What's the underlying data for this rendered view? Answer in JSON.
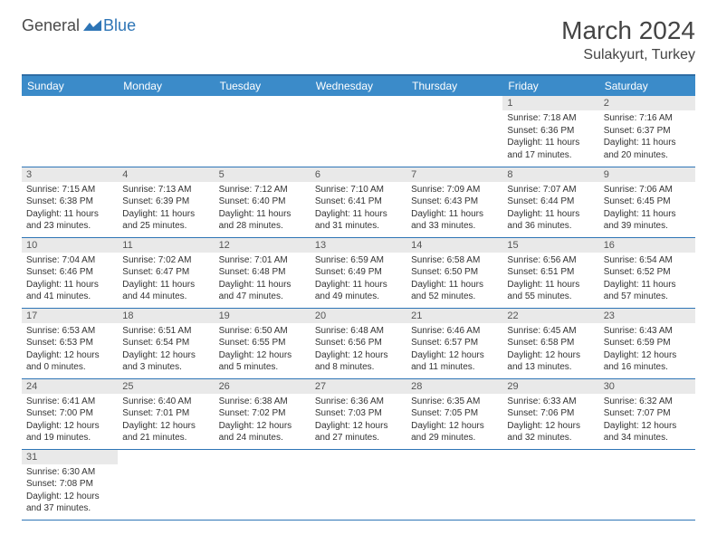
{
  "logo": {
    "general": "General",
    "blue": "Blue"
  },
  "title": "March 2024",
  "location": "Sulakyurt, Turkey",
  "colors": {
    "header_bg": "#3b8bc9",
    "header_border": "#2e6da4",
    "row_border": "#2e75b6",
    "daynum_bg": "#e9e9e9",
    "text": "#333333",
    "logo_blue": "#2e75b6",
    "background": "#ffffff"
  },
  "weekdays": [
    "Sunday",
    "Monday",
    "Tuesday",
    "Wednesday",
    "Thursday",
    "Friday",
    "Saturday"
  ],
  "days": [
    {
      "n": 1,
      "sunrise": "7:18 AM",
      "sunset": "6:36 PM",
      "dayh": 11,
      "daym": 17
    },
    {
      "n": 2,
      "sunrise": "7:16 AM",
      "sunset": "6:37 PM",
      "dayh": 11,
      "daym": 20
    },
    {
      "n": 3,
      "sunrise": "7:15 AM",
      "sunset": "6:38 PM",
      "dayh": 11,
      "daym": 23
    },
    {
      "n": 4,
      "sunrise": "7:13 AM",
      "sunset": "6:39 PM",
      "dayh": 11,
      "daym": 25
    },
    {
      "n": 5,
      "sunrise": "7:12 AM",
      "sunset": "6:40 PM",
      "dayh": 11,
      "daym": 28
    },
    {
      "n": 6,
      "sunrise": "7:10 AM",
      "sunset": "6:41 PM",
      "dayh": 11,
      "daym": 31
    },
    {
      "n": 7,
      "sunrise": "7:09 AM",
      "sunset": "6:43 PM",
      "dayh": 11,
      "daym": 33
    },
    {
      "n": 8,
      "sunrise": "7:07 AM",
      "sunset": "6:44 PM",
      "dayh": 11,
      "daym": 36
    },
    {
      "n": 9,
      "sunrise": "7:06 AM",
      "sunset": "6:45 PM",
      "dayh": 11,
      "daym": 39
    },
    {
      "n": 10,
      "sunrise": "7:04 AM",
      "sunset": "6:46 PM",
      "dayh": 11,
      "daym": 41
    },
    {
      "n": 11,
      "sunrise": "7:02 AM",
      "sunset": "6:47 PM",
      "dayh": 11,
      "daym": 44
    },
    {
      "n": 12,
      "sunrise": "7:01 AM",
      "sunset": "6:48 PM",
      "dayh": 11,
      "daym": 47
    },
    {
      "n": 13,
      "sunrise": "6:59 AM",
      "sunset": "6:49 PM",
      "dayh": 11,
      "daym": 49
    },
    {
      "n": 14,
      "sunrise": "6:58 AM",
      "sunset": "6:50 PM",
      "dayh": 11,
      "daym": 52
    },
    {
      "n": 15,
      "sunrise": "6:56 AM",
      "sunset": "6:51 PM",
      "dayh": 11,
      "daym": 55
    },
    {
      "n": 16,
      "sunrise": "6:54 AM",
      "sunset": "6:52 PM",
      "dayh": 11,
      "daym": 57
    },
    {
      "n": 17,
      "sunrise": "6:53 AM",
      "sunset": "6:53 PM",
      "dayh": 12,
      "daym": 0
    },
    {
      "n": 18,
      "sunrise": "6:51 AM",
      "sunset": "6:54 PM",
      "dayh": 12,
      "daym": 3
    },
    {
      "n": 19,
      "sunrise": "6:50 AM",
      "sunset": "6:55 PM",
      "dayh": 12,
      "daym": 5
    },
    {
      "n": 20,
      "sunrise": "6:48 AM",
      "sunset": "6:56 PM",
      "dayh": 12,
      "daym": 8
    },
    {
      "n": 21,
      "sunrise": "6:46 AM",
      "sunset": "6:57 PM",
      "dayh": 12,
      "daym": 11
    },
    {
      "n": 22,
      "sunrise": "6:45 AM",
      "sunset": "6:58 PM",
      "dayh": 12,
      "daym": 13
    },
    {
      "n": 23,
      "sunrise": "6:43 AM",
      "sunset": "6:59 PM",
      "dayh": 12,
      "daym": 16
    },
    {
      "n": 24,
      "sunrise": "6:41 AM",
      "sunset": "7:00 PM",
      "dayh": 12,
      "daym": 19
    },
    {
      "n": 25,
      "sunrise": "6:40 AM",
      "sunset": "7:01 PM",
      "dayh": 12,
      "daym": 21
    },
    {
      "n": 26,
      "sunrise": "6:38 AM",
      "sunset": "7:02 PM",
      "dayh": 12,
      "daym": 24
    },
    {
      "n": 27,
      "sunrise": "6:36 AM",
      "sunset": "7:03 PM",
      "dayh": 12,
      "daym": 27
    },
    {
      "n": 28,
      "sunrise": "6:35 AM",
      "sunset": "7:05 PM",
      "dayh": 12,
      "daym": 29
    },
    {
      "n": 29,
      "sunrise": "6:33 AM",
      "sunset": "7:06 PM",
      "dayh": 12,
      "daym": 32
    },
    {
      "n": 30,
      "sunrise": "6:32 AM",
      "sunset": "7:07 PM",
      "dayh": 12,
      "daym": 34
    },
    {
      "n": 31,
      "sunrise": "6:30 AM",
      "sunset": "7:08 PM",
      "dayh": 12,
      "daym": 37
    }
  ],
  "first_day_column": 5,
  "labels": {
    "sunrise": "Sunrise:",
    "sunset": "Sunset:",
    "daylight": "Daylight:",
    "hours": "hours",
    "and": "and",
    "minutes": "minutes."
  }
}
